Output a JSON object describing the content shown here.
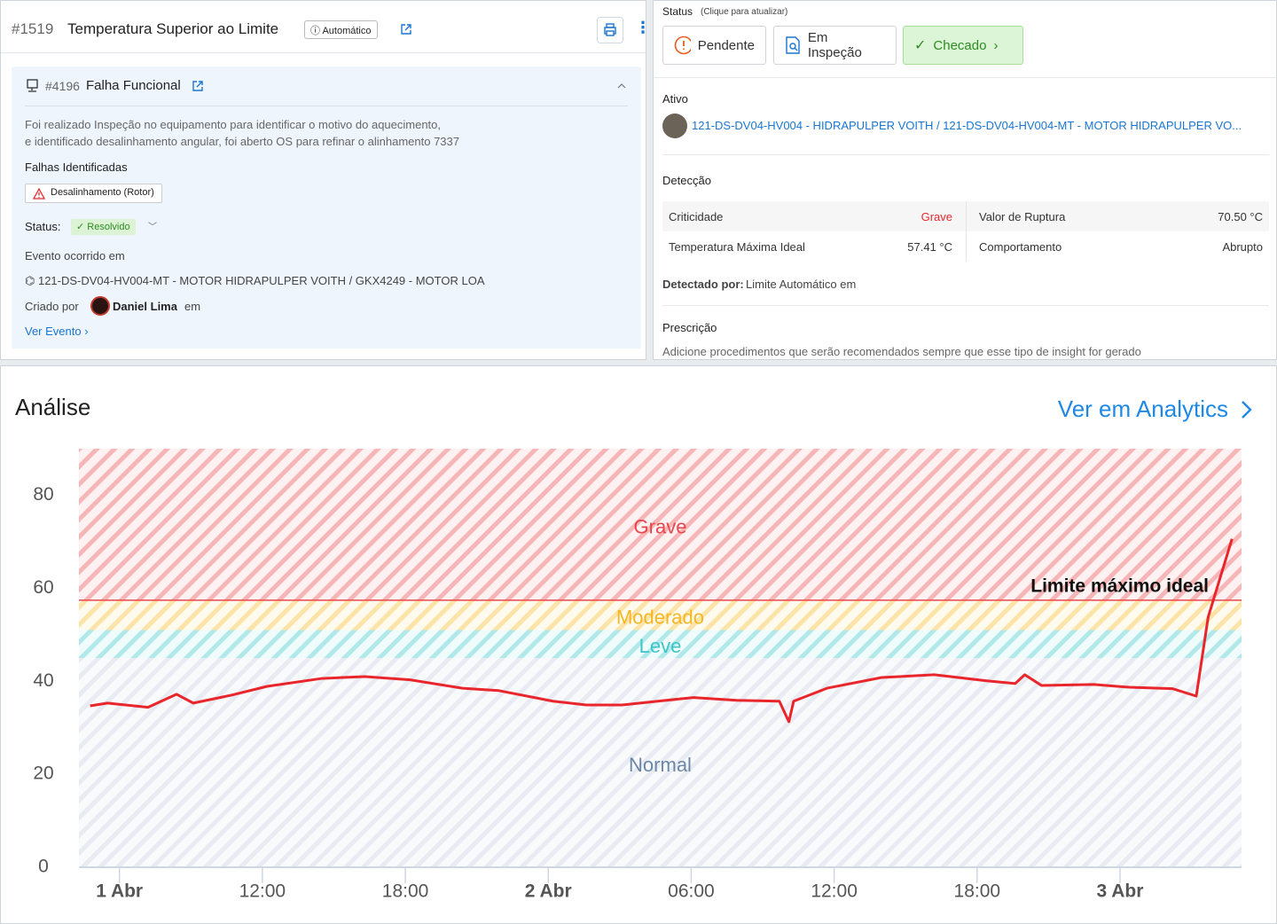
{
  "header": {
    "id": "#1519",
    "title": "Temperatura Superior ao Limite",
    "badge": "Automático"
  },
  "failure": {
    "id": "#4196",
    "title": "Falha Funcional",
    "description": [
      "Foi realizado Inspeção no equipamento para identificar o motivo do aquecimento,",
      "e identificado desalinhamento angular, foi aberto OS para refinar o alinhamento 7337"
    ],
    "faults_label": "Falhas Identificadas",
    "faults": [
      "Desalinhamento (Rotor)"
    ],
    "status_label": "Status:",
    "status": "Resolvido",
    "event_label": "Evento ocorrido em",
    "asset": "121-DS-DV04-HV004-MT - MOTOR HIDRAPULPER VOITH / GKX4249 - MOTOR LOA",
    "created_label": "Criado por",
    "creator": "Daniel Lima",
    "created_em": "em",
    "link": "Ver Evento"
  },
  "status_panel": {
    "label": "Status",
    "hint": "(Clique para atualizar)",
    "buttons": [
      "Pendente",
      "Em Inspeção",
      "Checado"
    ]
  },
  "asset": {
    "label": "Ativo",
    "name": "121-DS-DV04-HV004 - HIDRAPULPER VOITH / 121-DS-DV04-HV004-MT - MOTOR HIDRAPULPER VO..."
  },
  "detection": {
    "label": "Detecção",
    "rows": [
      [
        "Criticidade",
        "Grave"
      ],
      [
        "Valor de Ruptura",
        "70.50 °C"
      ],
      [
        "Temperatura Máxima Ideal",
        "57.41 °C"
      ],
      [
        "Comportamento",
        "Abrupto"
      ]
    ],
    "detected_by_label": "Detectado por:",
    "detected_by": "Limite Automático em"
  },
  "prescription": {
    "label": "Prescrição",
    "text": "Adicione procedimentos que serão recomendados sempre que esse tipo de insight for gerado"
  },
  "chart_data": {
    "type": "line",
    "title": "Análise",
    "link": "Ver em Analytics",
    "color": "#e8262b",
    "x": [
      4.77,
      5.5,
      7.2,
      8.4,
      9.1,
      10.7,
      12.2,
      14.5,
      16.3,
      18.2,
      20.4,
      21.9,
      24.2,
      25.6,
      27.1,
      28.6,
      30.1,
      31.9,
      33.7,
      34.1,
      34.3,
      35.7,
      38.0,
      40.2,
      42.4,
      43.6,
      44.0,
      44.7,
      46.9,
      48.4,
      50.2,
      51.2,
      51.7,
      52.7
    ],
    "values": [
      34.7,
      35.3,
      34.4,
      37.2,
      35.3,
      37.0,
      38.9,
      40.6,
      41.0,
      40.3,
      38.5,
      38.0,
      35.7,
      34.9,
      34.9,
      35.7,
      36.5,
      35.9,
      35.7,
      31.3,
      35.7,
      38.5,
      40.8,
      41.4,
      40.1,
      39.5,
      41.4,
      39.1,
      39.3,
      38.7,
      38.4,
      36.8,
      53.8,
      70.6
    ],
    "xlim": [
      4.3,
      53.1
    ],
    "xticks": [
      {
        "value": 6,
        "label": "1 Abr"
      },
      {
        "value": 12,
        "label": "12:00"
      },
      {
        "value": 18,
        "label": "18:00"
      },
      {
        "value": 24,
        "label": "2 Abr"
      },
      {
        "value": 30,
        "label": "06:00"
      },
      {
        "value": 36,
        "label": "12:00"
      },
      {
        "value": 42,
        "label": "18:00"
      },
      {
        "value": 48,
        "label": "3 Abr"
      }
    ],
    "ylim": [
      0,
      90
    ],
    "yticks": [
      0,
      20,
      40,
      60,
      80
    ],
    "zones": [
      {
        "label": "Normal",
        "from": 0,
        "color": "#6b86a8"
      },
      {
        "label": "Leve",
        "from": 45,
        "color": "#3cc6c8"
      },
      {
        "label": "Moderado",
        "from": 51,
        "color": "#f5b622"
      },
      {
        "label": "Grave",
        "from": 57.41,
        "color": "#e8474c"
      }
    ],
    "threshold": {
      "label": "Limite máximo ideal",
      "value": 57.41,
      "color": "#e8474c"
    }
  }
}
